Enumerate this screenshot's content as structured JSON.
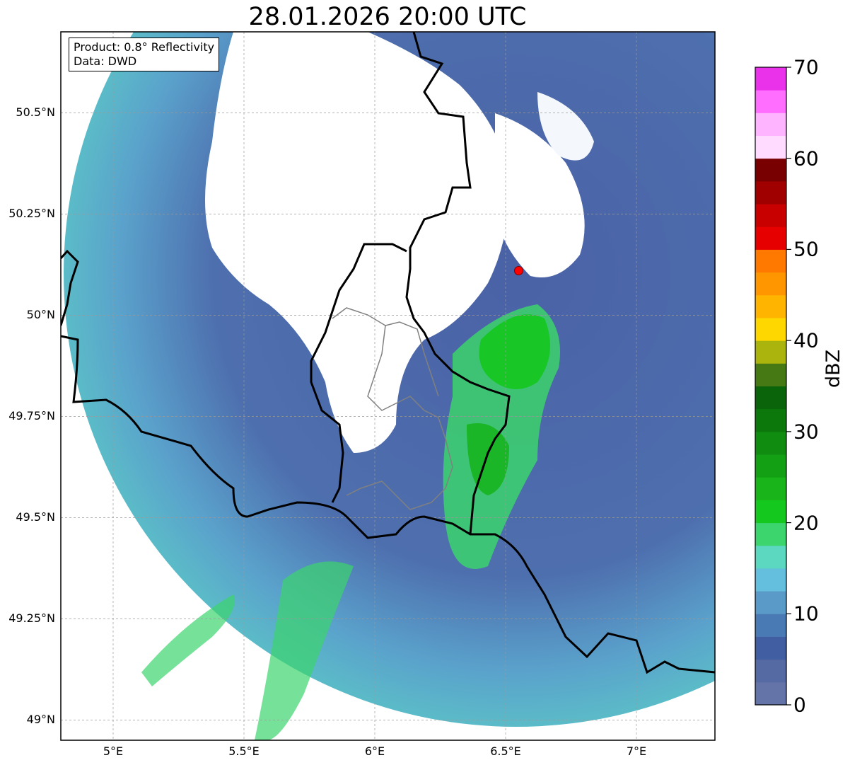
{
  "title": "28.01.2026 20:00 UTC",
  "info": {
    "product": "Product: 0.8° Reflectivity",
    "data": "Data: DWD"
  },
  "map": {
    "lon_range": [
      4.8,
      7.3
    ],
    "lat_range": [
      48.95,
      50.7
    ],
    "lat_ticks": [
      {
        "value": 50.5,
        "label": "50.5°N"
      },
      {
        "value": 50.25,
        "label": "50.25°N"
      },
      {
        "value": 50.0,
        "label": "50°N"
      },
      {
        "value": 49.75,
        "label": "49.75°N"
      },
      {
        "value": 49.5,
        "label": "49.5°N"
      },
      {
        "value": 49.25,
        "label": "49.25°N"
      },
      {
        "value": 49.0,
        "label": "49°N"
      }
    ],
    "lon_ticks": [
      {
        "value": 5.0,
        "label": "5°E"
      },
      {
        "value": 5.5,
        "label": "5.5°E"
      },
      {
        "value": 6.0,
        "label": "6°E"
      },
      {
        "value": 6.5,
        "label": "6.5°E"
      },
      {
        "value": 7.0,
        "label": "7°E"
      }
    ],
    "grid": true,
    "radar_site": {
      "lon": 6.55,
      "lat": 50.11,
      "color": "#ff0000"
    }
  },
  "colorbar": {
    "label": "dBZ",
    "vmin": 0,
    "vmax": 70,
    "ticks": [
      {
        "value": 70,
        "label": "70"
      },
      {
        "value": 60,
        "label": "60"
      },
      {
        "value": 50,
        "label": "50"
      },
      {
        "value": 40,
        "label": "40"
      },
      {
        "value": 30,
        "label": "30"
      },
      {
        "value": 20,
        "label": "20"
      },
      {
        "value": 10,
        "label": "10"
      },
      {
        "value": 0,
        "label": "0"
      }
    ],
    "colors": [
      "#6474a8",
      "#556aa2",
      "#425ea3",
      "#4a7ab4",
      "#5a9ac8",
      "#64bedd",
      "#5cd8c0",
      "#3cd46c",
      "#14c81e",
      "#18b41a",
      "#14a014",
      "#108c10",
      "#0c780c",
      "#0a640a",
      "#467814",
      "#aab40c",
      "#ffd700",
      "#ffb400",
      "#ff9600",
      "#ff7800",
      "#e60000",
      "#c80000",
      "#a00000",
      "#780000",
      "#ffdcff",
      "#ffb4ff",
      "#ff6eff",
      "#eb32eb"
    ]
  }
}
